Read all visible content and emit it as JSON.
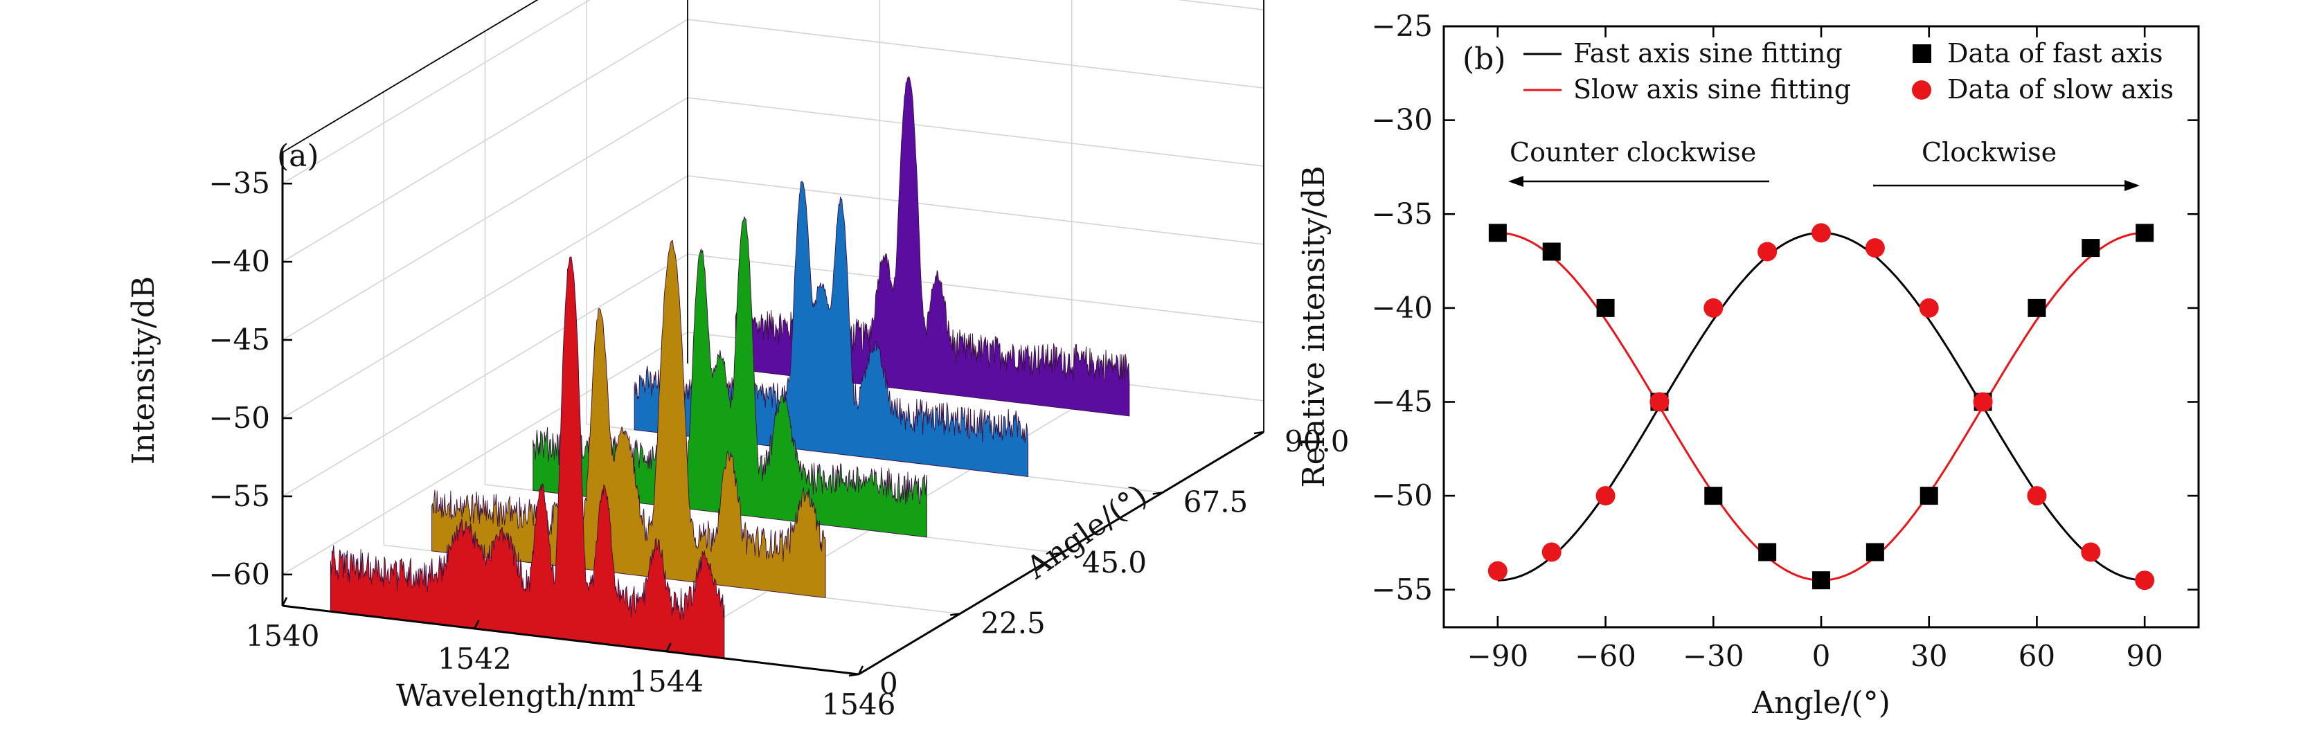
{
  "chart_data": [
    {
      "type": "line",
      "panel_label": "(a)",
      "xlabel": "Wavelength/nm",
      "ylabel": "Intensity/dB",
      "zlabel": "Angle/(°)",
      "xlim": [
        1540,
        1546
      ],
      "ylim": [
        -62,
        -33
      ],
      "x_ticks": [
        "1540",
        "1542",
        "1544",
        "1546"
      ],
      "y_ticks": [
        "−35",
        "−40",
        "−45",
        "−50",
        "−55",
        "−60"
      ],
      "z_ticks": [
        "0",
        "22.5",
        "45.0",
        "67.5",
        "90.0"
      ],
      "series": [
        {
          "angle": 0,
          "color": "#d6121a",
          "baseline": -60,
          "noise": 0.8,
          "peaks": [
            {
              "x": 1543.0,
              "y": -37.5,
              "w": 0.045
            },
            {
              "x": 1542.7,
              "y": -53.5,
              "w": 0.05
            },
            {
              "x": 1543.35,
              "y": -53.0,
              "w": 0.05
            },
            {
              "x": 1541.9,
              "y": -58.2,
              "w": 0.12
            },
            {
              "x": 1543.9,
              "y": -57.5,
              "w": 0.06
            },
            {
              "x": 1542.3,
              "y": -58.5,
              "w": 0.1
            },
            {
              "x": 1544.4,
              "y": -58.6,
              "w": 0.08
            }
          ]
        },
        {
          "angle": 22.5,
          "color": "#b8860b",
          "baseline": -60,
          "noise": 0.7,
          "peaks": [
            {
              "x": 1543.0,
              "y": -40.5,
              "w": 0.06
            },
            {
              "x": 1542.25,
              "y": -45.5,
              "w": 0.05
            },
            {
              "x": 1542.5,
              "y": -54.0,
              "w": 0.08
            },
            {
              "x": 1543.6,
              "y": -55.0,
              "w": 0.06
            },
            {
              "x": 1544.4,
              "y": -58.0,
              "w": 0.08
            }
          ]
        },
        {
          "angle": 45.0,
          "color": "#14a014",
          "baseline": -60,
          "noise": 0.7,
          "peaks": [
            {
              "x": 1542.25,
              "y": -45.5,
              "w": 0.045
            },
            {
              "x": 1542.7,
              "y": -43.0,
              "w": 0.045
            },
            {
              "x": 1542.45,
              "y": -53.0,
              "w": 0.07
            },
            {
              "x": 1543.1,
              "y": -56.0,
              "w": 0.07
            }
          ]
        },
        {
          "angle": 67.5,
          "color": "#1670c0",
          "baseline": -60,
          "noise": 0.7,
          "peaks": [
            {
              "x": 1542.25,
              "y": -45.0,
              "w": 0.045
            },
            {
              "x": 1542.65,
              "y": -46.0,
              "w": 0.045
            },
            {
              "x": 1542.45,
              "y": -52.0,
              "w": 0.07
            },
            {
              "x": 1543.0,
              "y": -57.0,
              "w": 0.08
            }
          ]
        },
        {
          "angle": 90.0,
          "color": "#5a0d9e",
          "baseline": -60,
          "noise": 0.7,
          "peaks": [
            {
              "x": 1542.3,
              "y": -42.0,
              "w": 0.05
            },
            {
              "x": 1542.05,
              "y": -55.0,
              "w": 0.06
            },
            {
              "x": 1542.6,
              "y": -56.5,
              "w": 0.06
            }
          ]
        }
      ]
    },
    {
      "type": "scatter",
      "panel_label": "(b)",
      "xlabel": "Angle/(°)",
      "ylabel": "Relative intensity/dB",
      "xlim": [
        -105,
        105
      ],
      "ylim": [
        -57,
        -25
      ],
      "x_ticks": [
        -90,
        -60,
        -30,
        0,
        30,
        60,
        90
      ],
      "x_tick_labels": [
        "−90",
        "−60",
        "−30",
        "0",
        "30",
        "60",
        "90"
      ],
      "y_ticks": [
        -25,
        -30,
        -35,
        -40,
        -45,
        -50,
        -55
      ],
      "y_tick_labels": [
        "−25",
        "−30",
        "−35",
        "−40",
        "−45",
        "−50",
        "−55"
      ],
      "annotations": {
        "left": "Counter clockwise",
        "right": "Clockwise"
      },
      "legend": {
        "fast_fit": "Fast axis sine fitting",
        "slow_fit": "Slow axis sine fitting",
        "fast_data": "Data of fast axis",
        "slow_data": "Data of slow axis",
        "position": "top"
      },
      "fast_data": {
        "color": "#000000",
        "x": [
          -90,
          -75,
          -60,
          -45,
          -30,
          -15,
          0,
          15,
          30,
          45,
          60,
          75,
          90
        ],
        "y": [
          -36.0,
          -37.0,
          -40.0,
          -45.0,
          -50.0,
          -53.0,
          -54.5,
          -53.0,
          -50.0,
          -45.0,
          -40.0,
          -36.8,
          -36.0
        ]
      },
      "slow_data": {
        "color": "#e8151b",
        "x": [
          -90,
          -75,
          -60,
          -45,
          -30,
          -15,
          0,
          15,
          30,
          45,
          60,
          75,
          90
        ],
        "y": [
          -54.0,
          -53.0,
          -50.0,
          -45.0,
          -40.0,
          -37.0,
          -36.0,
          -36.8,
          -40.0,
          -45.0,
          -50.0,
          -53.0,
          -54.5
        ]
      },
      "fast_fit": {
        "color": "#000000",
        "mean": -45.25,
        "amplitude": 9.25,
        "sign": 1
      },
      "slow_fit": {
        "color": "#e8151b",
        "mean": -45.25,
        "amplitude": 9.25,
        "sign": -1
      }
    }
  ]
}
